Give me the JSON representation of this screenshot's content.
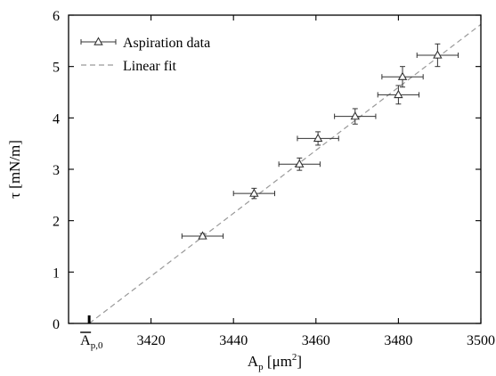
{
  "chart_data": {
    "type": "scatter",
    "title": "",
    "xlabel_main": "A",
    "xlabel_sub": "p",
    "xlabel_unit_pre": " [μm",
    "xlabel_unit_sup": "2",
    "xlabel_unit_post": "]",
    "ylabel": "τ [mN/m]",
    "xlim": [
      3400,
      3500
    ],
    "ylim": [
      0,
      6
    ],
    "x_ticks": [
      3420,
      3440,
      3460,
      3480,
      3500
    ],
    "x_tick_labels": [
      "3420",
      "3440",
      "3460",
      "3480",
      "3500"
    ],
    "y_ticks": [
      0,
      1,
      2,
      3,
      4,
      5,
      6
    ],
    "y_tick_labels": [
      "0",
      "1",
      "2",
      "3",
      "4",
      "5",
      "6"
    ],
    "special_tick": {
      "x": 3405,
      "label_main": "A",
      "label_sub": "p,0",
      "overbar": true
    },
    "grid": false,
    "legend_position": "top-left",
    "series": [
      {
        "name": "Aspiration data",
        "marker": "triangle",
        "color": "#333333",
        "points": [
          {
            "x": 3432.5,
            "y": 1.7,
            "xerr": 5.0,
            "yerr": 0.05
          },
          {
            "x": 3445.0,
            "y": 2.53,
            "xerr": 5.0,
            "yerr": 0.1
          },
          {
            "x": 3456.0,
            "y": 3.1,
            "xerr": 5.0,
            "yerr": 0.12
          },
          {
            "x": 3460.5,
            "y": 3.6,
            "xerr": 5.0,
            "yerr": 0.13
          },
          {
            "x": 3469.5,
            "y": 4.03,
            "xerr": 5.0,
            "yerr": 0.15
          },
          {
            "x": 3480.0,
            "y": 4.45,
            "xerr": 5.0,
            "yerr": 0.18
          },
          {
            "x": 3481.0,
            "y": 4.8,
            "xerr": 5.0,
            "yerr": 0.2
          },
          {
            "x": 3489.5,
            "y": 5.22,
            "xerr": 5.0,
            "yerr": 0.22
          }
        ]
      },
      {
        "name": "Linear fit",
        "line_style": "dashed",
        "color": "#999999",
        "points": [
          {
            "x": 3405,
            "y": 0
          },
          {
            "x": 3500,
            "y": 5.82
          }
        ]
      }
    ]
  }
}
